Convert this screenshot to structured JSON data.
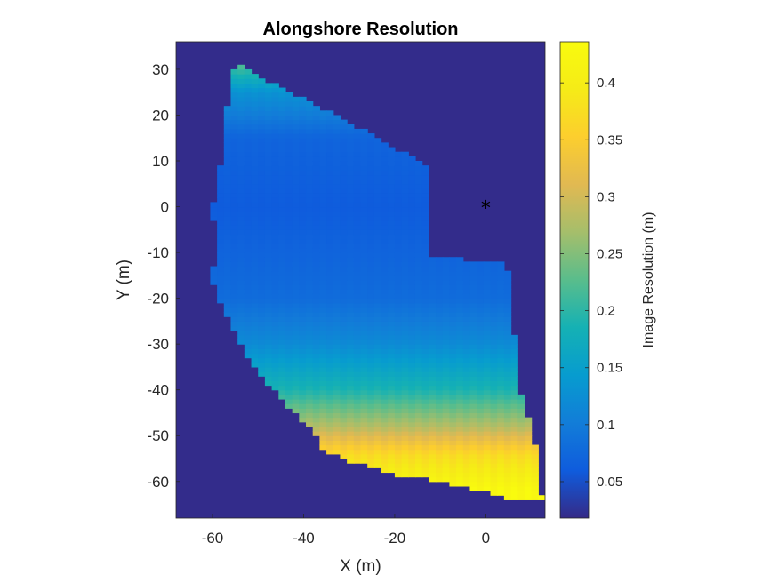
{
  "chart_data": {
    "type": "heatmap",
    "title": "Alongshore Resolution",
    "xlabel": "X (m)",
    "ylabel": "Y (m)",
    "xlim": [
      -68,
      13
    ],
    "ylim": [
      -68,
      36
    ],
    "x_ticks": [
      -60,
      -40,
      -20,
      0
    ],
    "x_tick_labels": [
      "-60",
      "-40",
      "-20",
      "0"
    ],
    "y_ticks": [
      30,
      20,
      10,
      0,
      -10,
      -20,
      -30,
      -40,
      -50,
      -60
    ],
    "y_tick_labels": [
      "30",
      "20",
      "10",
      "0",
      "-10",
      "-20",
      "-30",
      "-40",
      "-50",
      "-60"
    ],
    "colormap": "parula",
    "background_value": 0.02,
    "colorbar": {
      "label": "Image Resolution (m)",
      "limits": [
        0.018,
        0.436
      ],
      "ticks": [
        0.4,
        0.35,
        0.3,
        0.25,
        0.2,
        0.15,
        0.1,
        0.05
      ],
      "tick_labels": [
        "0.4",
        "0.35",
        "0.3",
        "0.25",
        "0.2",
        "0.15",
        "0.1",
        "0.05"
      ]
    },
    "region_boundary": [
      [
        -54.5,
        31.5
      ],
      [
        -47,
        27
      ],
      [
        -39,
        23
      ],
      [
        -31,
        19
      ],
      [
        -24,
        15
      ],
      [
        -13,
        9
      ],
      [
        -13,
        -11
      ],
      [
        4.5,
        -12
      ],
      [
        5.5,
        -20
      ],
      [
        6.5,
        -30
      ],
      [
        7.5,
        -40
      ],
      [
        9.5,
        -47
      ],
      [
        11,
        -53
      ],
      [
        11.5,
        -63
      ],
      [
        12.5,
        -63.5
      ],
      [
        6,
        -64
      ],
      [
        -3,
        -61.5
      ],
      [
        -12,
        -59.5
      ],
      [
        -20,
        -58.5
      ],
      [
        -30,
        -55.5
      ],
      [
        -36,
        -53
      ],
      [
        -37.5,
        -49
      ],
      [
        -42,
        -45
      ],
      [
        -47,
        -39.5
      ],
      [
        -52,
        -33
      ],
      [
        -56,
        -25
      ],
      [
        -59,
        -19
      ],
      [
        -61,
        -14
      ],
      [
        -59,
        -12
      ],
      [
        -60,
        0
      ],
      [
        -58,
        10
      ],
      [
        -57,
        20
      ],
      [
        -56,
        28
      ]
    ],
    "resolution_profile_along_y": [
      {
        "y": 31,
        "value": 0.22
      },
      {
        "y": 25,
        "value": 0.13
      },
      {
        "y": 15,
        "value": 0.07
      },
      {
        "y": 0,
        "value": 0.06
      },
      {
        "y": -10,
        "value": 0.07
      },
      {
        "y": -20,
        "value": 0.08
      },
      {
        "y": -30,
        "value": 0.12
      },
      {
        "y": -40,
        "value": 0.19
      },
      {
        "y": -48,
        "value": 0.28
      },
      {
        "y": -54,
        "value": 0.37
      },
      {
        "y": -62,
        "value": 0.43
      }
    ],
    "marker": {
      "x": 0,
      "y": 0,
      "symbol": "*"
    }
  }
}
